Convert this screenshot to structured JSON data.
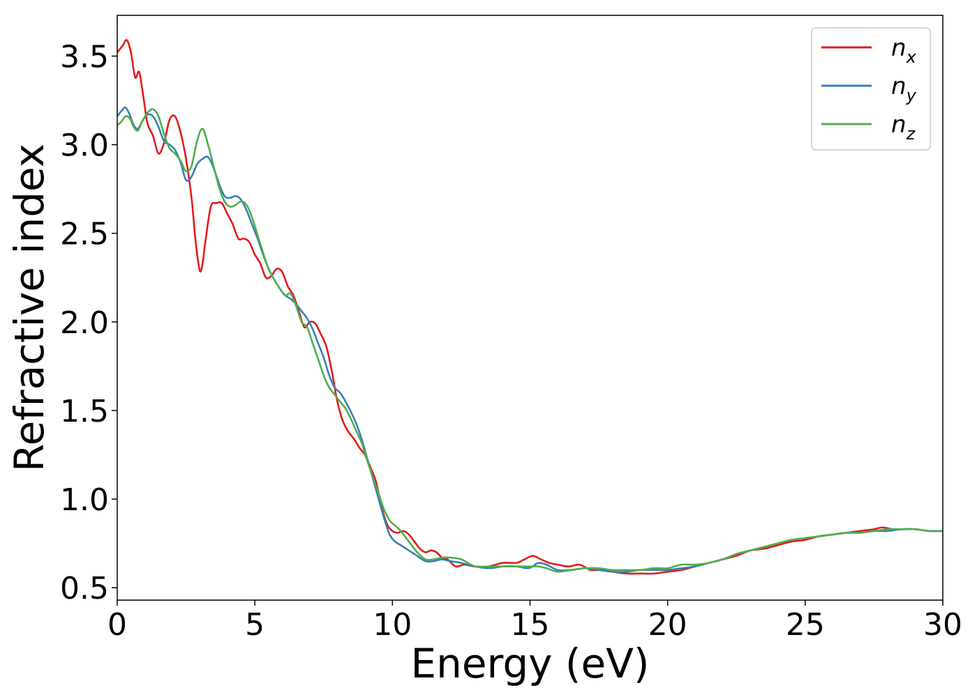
{
  "chart_data": {
    "type": "line",
    "xlabel": "Energy (eV)",
    "ylabel": "Refractive index",
    "xlim": [
      0,
      30
    ],
    "ylim": [
      0.43,
      3.73
    ],
    "xticks": [
      0,
      5,
      10,
      15,
      20,
      25,
      30
    ],
    "xtick_labels": [
      "0",
      "5",
      "10",
      "15",
      "20",
      "25",
      "30"
    ],
    "yticks": [
      0.5,
      1.0,
      1.5,
      2.0,
      2.5,
      3.0,
      3.5
    ],
    "ytick_labels": [
      "0.5",
      "1.0",
      "1.5",
      "2.0",
      "2.5",
      "3.0",
      "3.5"
    ],
    "grid": false,
    "legend_position": "top-right",
    "series": [
      {
        "name": "n_x",
        "label_base": "n",
        "label_sub": "x",
        "color": "#e41a1c",
        "x": [
          0,
          0.2,
          0.35,
          0.5,
          0.65,
          0.8,
          0.95,
          1.1,
          1.3,
          1.5,
          1.7,
          1.9,
          2.1,
          2.3,
          2.5,
          2.7,
          2.85,
          3.0,
          3.1,
          3.2,
          3.4,
          3.6,
          3.8,
          4.0,
          4.2,
          4.4,
          4.6,
          4.8,
          5.0,
          5.2,
          5.4,
          5.6,
          5.8,
          6.0,
          6.2,
          6.4,
          6.6,
          6.8,
          7.0,
          7.2,
          7.4,
          7.6,
          7.8,
          8.0,
          8.2,
          8.4,
          8.6,
          8.8,
          9.0,
          9.2,
          9.4,
          9.6,
          9.8,
          10.0,
          10.2,
          10.4,
          10.6,
          10.8,
          11.0,
          11.2,
          11.4,
          11.6,
          11.8,
          12.0,
          12.3,
          12.6,
          13.0,
          13.5,
          14.0,
          14.5,
          14.8,
          15.1,
          15.4,
          15.7,
          16.0,
          16.4,
          16.8,
          17.2,
          17.6,
          18.0,
          18.5,
          19.0,
          19.5,
          20.0,
          20.5,
          21.0,
          21.5,
          22.0,
          22.5,
          23.0,
          23.5,
          24.0,
          24.5,
          25.0,
          25.5,
          26.0,
          26.5,
          27.0,
          27.5,
          27.8,
          28.2,
          28.6,
          29.0,
          29.5,
          30.0
        ],
        "y": [
          3.52,
          3.56,
          3.59,
          3.52,
          3.38,
          3.41,
          3.27,
          3.12,
          3.05,
          2.95,
          3.01,
          3.14,
          3.16,
          3.07,
          2.92,
          2.7,
          2.45,
          2.29,
          2.33,
          2.45,
          2.65,
          2.67,
          2.67,
          2.61,
          2.55,
          2.47,
          2.47,
          2.45,
          2.38,
          2.33,
          2.25,
          2.26,
          2.3,
          2.28,
          2.2,
          2.15,
          2.06,
          1.97,
          2.0,
          1.99,
          1.93,
          1.86,
          1.72,
          1.55,
          1.44,
          1.38,
          1.34,
          1.29,
          1.25,
          1.18,
          1.1,
          0.96,
          0.86,
          0.82,
          0.81,
          0.82,
          0.8,
          0.76,
          0.72,
          0.7,
          0.71,
          0.7,
          0.67,
          0.66,
          0.62,
          0.63,
          0.62,
          0.62,
          0.64,
          0.64,
          0.66,
          0.68,
          0.66,
          0.64,
          0.63,
          0.62,
          0.63,
          0.6,
          0.6,
          0.59,
          0.58,
          0.58,
          0.58,
          0.59,
          0.6,
          0.62,
          0.64,
          0.66,
          0.68,
          0.71,
          0.72,
          0.74,
          0.76,
          0.77,
          0.79,
          0.8,
          0.81,
          0.82,
          0.83,
          0.84,
          0.83,
          0.83,
          0.83,
          0.82,
          0.82
        ]
      },
      {
        "name": "n_y",
        "label_base": "n",
        "label_sub": "y",
        "color": "#377eb8",
        "x": [
          0,
          0.15,
          0.3,
          0.45,
          0.6,
          0.75,
          0.9,
          1.1,
          1.3,
          1.5,
          1.7,
          1.9,
          2.1,
          2.3,
          2.5,
          2.7,
          2.9,
          3.1,
          3.3,
          3.5,
          3.7,
          3.9,
          4.1,
          4.3,
          4.5,
          4.7,
          4.9,
          5.1,
          5.3,
          5.5,
          5.7,
          5.9,
          6.1,
          6.3,
          6.5,
          6.7,
          6.9,
          7.1,
          7.3,
          7.5,
          7.7,
          7.9,
          8.1,
          8.3,
          8.5,
          8.7,
          8.9,
          9.1,
          9.3,
          9.5,
          9.7,
          9.9,
          10.1,
          10.3,
          10.6,
          10.9,
          11.2,
          11.5,
          11.8,
          12.1,
          12.5,
          13.0,
          13.5,
          14.0,
          14.5,
          14.9,
          15.1,
          15.3,
          15.6,
          16.0,
          16.5,
          17.0,
          17.5,
          18.0,
          18.5,
          19.0,
          19.5,
          20.0,
          20.5,
          21.0,
          21.5,
          22.0,
          22.5,
          23.0,
          23.5,
          24.0,
          24.5,
          25.0,
          25.5,
          26.0,
          26.5,
          27.0,
          27.5,
          28.0,
          28.5,
          29.0,
          29.5,
          30.0
        ],
        "y": [
          3.16,
          3.19,
          3.21,
          3.17,
          3.11,
          3.09,
          3.13,
          3.17,
          3.16,
          3.1,
          3.02,
          3.0,
          2.97,
          2.9,
          2.8,
          2.82,
          2.89,
          2.92,
          2.93,
          2.87,
          2.78,
          2.71,
          2.7,
          2.71,
          2.69,
          2.63,
          2.55,
          2.47,
          2.38,
          2.3,
          2.24,
          2.19,
          2.15,
          2.13,
          2.1,
          2.06,
          2.02,
          1.96,
          1.88,
          1.8,
          1.7,
          1.63,
          1.6,
          1.55,
          1.49,
          1.42,
          1.33,
          1.22,
          1.11,
          1.0,
          0.89,
          0.8,
          0.76,
          0.74,
          0.71,
          0.68,
          0.65,
          0.65,
          0.66,
          0.65,
          0.64,
          0.62,
          0.61,
          0.62,
          0.62,
          0.61,
          0.62,
          0.64,
          0.63,
          0.6,
          0.6,
          0.61,
          0.6,
          0.59,
          0.59,
          0.6,
          0.6,
          0.6,
          0.61,
          0.62,
          0.64,
          0.66,
          0.69,
          0.71,
          0.73,
          0.75,
          0.77,
          0.78,
          0.79,
          0.8,
          0.81,
          0.81,
          0.82,
          0.82,
          0.83,
          0.83,
          0.82,
          0.82
        ]
      },
      {
        "name": "n_z",
        "label_base": "n",
        "label_sub": "z",
        "color": "#4daf4a",
        "x": [
          0,
          0.15,
          0.3,
          0.45,
          0.6,
          0.75,
          0.9,
          1.1,
          1.3,
          1.5,
          1.7,
          1.9,
          2.1,
          2.3,
          2.5,
          2.7,
          2.9,
          3.1,
          3.3,
          3.5,
          3.7,
          3.9,
          4.1,
          4.3,
          4.5,
          4.7,
          4.9,
          5.1,
          5.3,
          5.5,
          5.7,
          5.9,
          6.1,
          6.3,
          6.5,
          6.7,
          6.9,
          7.1,
          7.3,
          7.5,
          7.7,
          7.9,
          8.1,
          8.3,
          8.5,
          8.7,
          8.9,
          9.1,
          9.3,
          9.5,
          9.7,
          9.9,
          10.1,
          10.3,
          10.6,
          10.9,
          11.2,
          11.5,
          11.8,
          12.1,
          12.5,
          13.0,
          13.5,
          14.0,
          14.5,
          14.9,
          15.1,
          15.3,
          15.6,
          16.0,
          16.5,
          17.0,
          17.5,
          18.0,
          18.5,
          19.0,
          19.5,
          20.0,
          20.5,
          21.0,
          21.5,
          22.0,
          22.5,
          23.0,
          23.5,
          24.0,
          24.5,
          25.0,
          25.5,
          26.0,
          26.5,
          27.0,
          27.5,
          28.0,
          28.5,
          29.0,
          29.5,
          30.0
        ],
        "y": [
          3.11,
          3.13,
          3.16,
          3.15,
          3.1,
          3.08,
          3.13,
          3.18,
          3.2,
          3.16,
          3.06,
          2.98,
          2.95,
          2.91,
          2.85,
          2.88,
          3.02,
          3.09,
          3.0,
          2.88,
          2.76,
          2.68,
          2.65,
          2.66,
          2.68,
          2.66,
          2.59,
          2.49,
          2.39,
          2.3,
          2.24,
          2.19,
          2.15,
          2.16,
          2.09,
          2.0,
          1.97,
          1.88,
          1.79,
          1.7,
          1.63,
          1.59,
          1.55,
          1.51,
          1.45,
          1.38,
          1.31,
          1.21,
          1.12,
          1.03,
          0.94,
          0.88,
          0.85,
          0.82,
          0.76,
          0.7,
          0.66,
          0.66,
          0.67,
          0.67,
          0.66,
          0.62,
          0.62,
          0.62,
          0.62,
          0.62,
          0.62,
          0.62,
          0.61,
          0.59,
          0.6,
          0.61,
          0.61,
          0.6,
          0.6,
          0.6,
          0.61,
          0.61,
          0.63,
          0.63,
          0.64,
          0.66,
          0.69,
          0.71,
          0.73,
          0.75,
          0.77,
          0.78,
          0.79,
          0.8,
          0.81,
          0.81,
          0.82,
          0.83,
          0.83,
          0.83,
          0.82,
          0.82
        ]
      }
    ]
  }
}
